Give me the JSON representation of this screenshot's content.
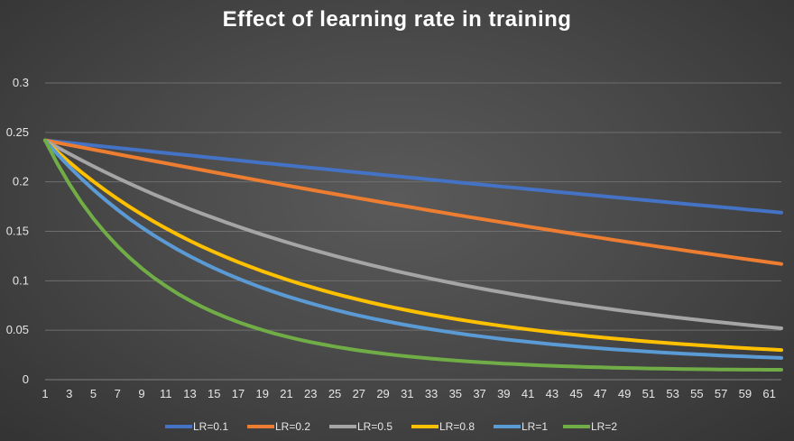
{
  "chart_data": {
    "type": "line",
    "title": "Effect of learning rate in training",
    "xlabel": "",
    "ylabel": "",
    "xlim": [
      1,
      62
    ],
    "ylim": [
      0,
      0.3
    ],
    "y_ticks": [
      "0",
      "0.05",
      "0.1",
      "0.15",
      "0.2",
      "0.25",
      "0.3"
    ],
    "x_tick_step": 2,
    "grid": "horizontal",
    "legend_position": "bottom",
    "start_value": 0.242,
    "x": [
      1,
      2,
      3,
      4,
      5,
      6,
      7,
      8,
      9,
      10,
      11,
      12,
      13,
      14,
      15,
      16,
      17,
      18,
      19,
      20,
      21,
      22,
      23,
      24,
      25,
      26,
      27,
      28,
      29,
      30,
      31,
      32,
      33,
      34,
      35,
      36,
      37,
      38,
      39,
      40,
      41,
      42,
      43,
      44,
      45,
      46,
      47,
      48,
      49,
      50,
      51,
      52,
      53,
      54,
      55,
      56,
      57,
      58,
      59,
      60,
      61,
      62
    ],
    "series": [
      {
        "name": "LR=0.1",
        "color": "#4472c4",
        "start": 0.242,
        "end": 0.169,
        "halfway": 0.204
      },
      {
        "name": "LR=0.2",
        "color": "#ed7d31",
        "start": 0.242,
        "end": 0.117,
        "halfway": 0.174
      },
      {
        "name": "LR=0.5",
        "color": "#a5a5a5",
        "start": 0.242,
        "end": 0.052,
        "halfway": 0.106
      },
      {
        "name": "LR=0.8",
        "color": "#ffc000",
        "start": 0.242,
        "end": 0.03,
        "halfway": 0.069
      },
      {
        "name": "LR=1",
        "color": "#5b9bd5",
        "start": 0.242,
        "end": 0.022,
        "halfway": 0.054
      },
      {
        "name": "LR=2",
        "color": "#70ad47",
        "start": 0.242,
        "end": 0.01,
        "halfway": 0.023
      }
    ]
  }
}
